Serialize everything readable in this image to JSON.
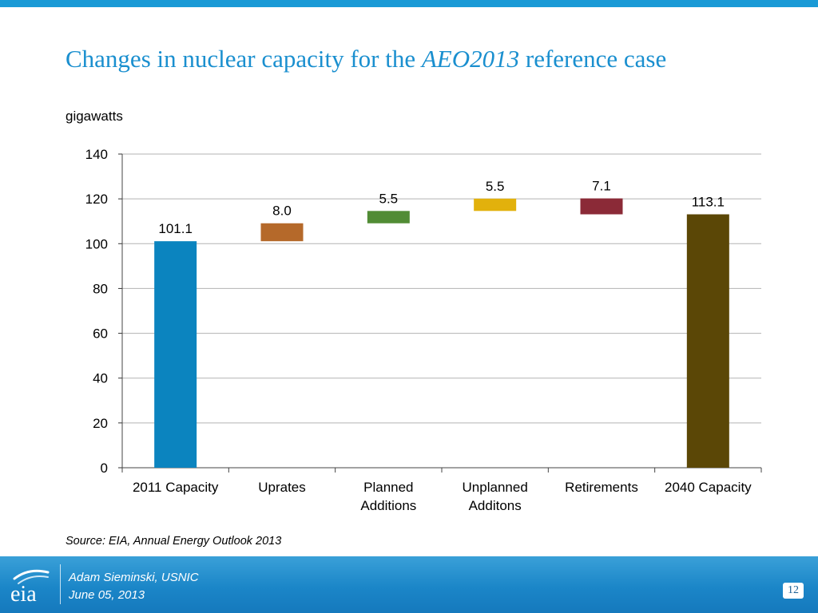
{
  "slide": {
    "title_prefix": "Changes in nuclear capacity for the ",
    "title_italic": "AEO2013",
    "title_suffix": " reference case",
    "unit_label": "gigawatts",
    "source": "Source:  EIA, Annual Energy Outlook 2013"
  },
  "footer": {
    "logo_text": "eia",
    "presenter": "Adam Sieminski, USNIC",
    "date": "June 05, 2013",
    "page_number": "12"
  },
  "colors": {
    "brand_blue": "#1a8fcf",
    "footer_blue": "#1b86c8"
  },
  "chart_data": {
    "type": "bar",
    "subtype": "waterfall",
    "title": "",
    "xlabel": "",
    "ylabel": "gigawatts",
    "ylim": [
      0,
      140
    ],
    "yticks": [
      0,
      20,
      40,
      60,
      80,
      100,
      120,
      140
    ],
    "grid": true,
    "legend": "none",
    "categories": [
      [
        "2011 Capacity"
      ],
      [
        "Uprates"
      ],
      [
        "Planned",
        "Additions"
      ],
      [
        "Unplanned",
        "Additons"
      ],
      [
        "Retirements"
      ],
      [
        "2040 Capacity"
      ]
    ],
    "bars": [
      {
        "base": 0,
        "top": 101.1,
        "label": "101.1",
        "color": "#0b84bf"
      },
      {
        "base": 101.1,
        "top": 109.1,
        "label": "8.0",
        "color": "#b5692a"
      },
      {
        "base": 109.1,
        "top": 114.6,
        "label": "5.5",
        "color": "#518c35"
      },
      {
        "base": 114.6,
        "top": 120.1,
        "label": "5.5",
        "color": "#e2b10c"
      },
      {
        "base": 113.1,
        "top": 120.2,
        "label": "7.1",
        "color": "#8b2a37"
      },
      {
        "base": 0,
        "top": 113.1,
        "label": "113.1",
        "color": "#5b4706"
      }
    ]
  }
}
